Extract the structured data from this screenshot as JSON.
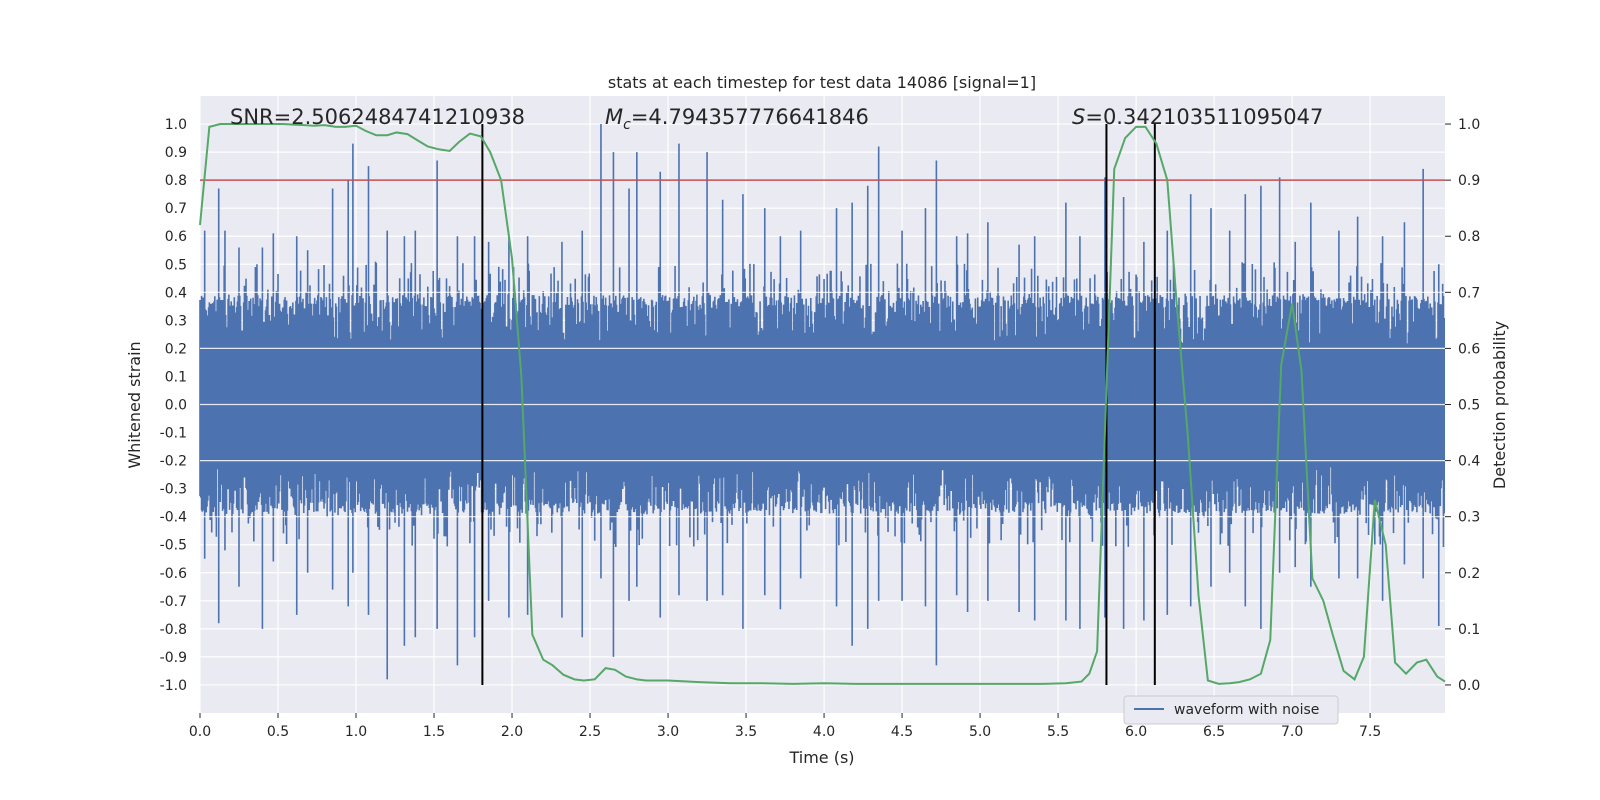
{
  "chart_data": {
    "type": "line",
    "title": "stats at each timestep for test data 14086 [signal=1]",
    "xlabel": "Time (s)",
    "ylabel_left": "Whitened strain",
    "ylabel_right": "Detection probability",
    "xlim": [
      0.0,
      7.98
    ],
    "ylim_left": [
      -1.1,
      1.1
    ],
    "ylim_right": [
      -0.05,
      1.05
    ],
    "x_ticks": [
      "0.0",
      "0.5",
      "1.0",
      "1.5",
      "2.0",
      "2.5",
      "3.0",
      "3.5",
      "4.0",
      "4.5",
      "5.0",
      "5.5",
      "6.0",
      "6.5",
      "7.0",
      "7.5"
    ],
    "x_tick_values": [
      0.0,
      0.5,
      1.0,
      1.5,
      2.0,
      2.5,
      3.0,
      3.5,
      4.0,
      4.5,
      5.0,
      5.5,
      6.0,
      6.5,
      7.0,
      7.5
    ],
    "y_left_ticks": [
      "1.0",
      "0.9",
      "0.8",
      "0.7",
      "0.6",
      "0.5",
      "0.4",
      "0.3",
      "0.2",
      "0.1",
      "0.0",
      "-0.1",
      "-0.2",
      "-0.3",
      "-0.4",
      "-0.5",
      "-0.6",
      "-0.7",
      "-0.8",
      "-0.9",
      "-1.0"
    ],
    "y_left_tick_values": [
      1.0,
      0.9,
      0.8,
      0.7,
      0.6,
      0.5,
      0.4,
      0.3,
      0.2,
      0.1,
      0.0,
      -0.1,
      -0.2,
      -0.3,
      -0.4,
      -0.5,
      -0.6,
      -0.7,
      -0.8,
      -0.9,
      -1.0
    ],
    "y_right_ticks": [
      "1.0",
      "0.9",
      "0.8",
      "0.7",
      "0.6",
      "0.5",
      "0.4",
      "0.3",
      "0.2",
      "0.1",
      "0.0"
    ],
    "y_right_tick_values": [
      1.0,
      0.9,
      0.8,
      0.7,
      0.6,
      0.5,
      0.4,
      0.3,
      0.2,
      0.1,
      0.0
    ],
    "annotations": {
      "snr": "SNR=2.5062484741210938",
      "mc_symbol": "M",
      "mc_sub": "c",
      "mc_value": "=4.794357776641846",
      "s_symbol": "S",
      "s_value": "=0.342103511095047"
    },
    "legend": {
      "label": "waveform with noise",
      "position": "lower-right"
    },
    "threshold": {
      "value": 0.9,
      "axis": "right",
      "color": "#c44e52"
    },
    "vertical_lines": [
      1.81,
      5.81,
      6.12
    ],
    "vertical_line_range_left": [
      -1.0,
      1.0
    ],
    "waveform": {
      "name": "waveform with noise",
      "color": "#4c72b0",
      "sample_rate": 200,
      "duration": 7.98,
      "core_amplitude": 0.21,
      "band_top": 0.39,
      "band_bottom": -0.39,
      "spikes": [
        [
          0.03,
          0.62,
          -0.55
        ],
        [
          0.12,
          0.77,
          -0.78
        ],
        [
          0.16,
          0.62,
          -0.52
        ],
        [
          0.25,
          0.56,
          -0.65
        ],
        [
          0.4,
          0.56,
          -0.8
        ],
        [
          0.47,
          0.61,
          -0.56
        ],
        [
          0.62,
          0.6,
          -0.75
        ],
        [
          0.69,
          0.55,
          -0.6
        ],
        [
          0.85,
          0.77,
          -0.66
        ],
        [
          0.95,
          0.8,
          -0.72
        ],
        [
          0.98,
          0.93,
          -0.6
        ],
        [
          1.08,
          0.85,
          -0.75
        ],
        [
          1.2,
          0.62,
          -0.98
        ],
        [
          1.31,
          0.6,
          -0.86
        ],
        [
          1.38,
          0.62,
          -0.83
        ],
        [
          1.52,
          0.87,
          -0.8
        ],
        [
          1.65,
          0.6,
          -0.93
        ],
        [
          1.76,
          0.6,
          -0.83
        ],
        [
          1.85,
          0.58,
          -0.7
        ],
        [
          1.98,
          0.6,
          -0.76
        ],
        [
          2.1,
          0.6,
          -0.75
        ],
        [
          2.32,
          0.58,
          -0.76
        ],
        [
          2.45,
          0.62,
          -0.83
        ],
        [
          2.57,
          1.0,
          -0.62
        ],
        [
          2.65,
          0.9,
          -0.9
        ],
        [
          2.75,
          0.77,
          -0.7
        ],
        [
          2.8,
          0.9,
          -0.65
        ],
        [
          2.95,
          0.83,
          -0.76
        ],
        [
          3.07,
          0.93,
          -0.68
        ],
        [
          3.25,
          0.9,
          -0.7
        ],
        [
          3.35,
          0.73,
          -0.68
        ],
        [
          3.48,
          0.75,
          -0.8
        ],
        [
          3.62,
          0.7,
          -0.68
        ],
        [
          3.72,
          0.6,
          -0.73
        ],
        [
          3.85,
          0.62,
          -0.62
        ],
        [
          4.08,
          0.7,
          -0.72
        ],
        [
          4.18,
          0.72,
          -0.86
        ],
        [
          4.28,
          0.78,
          -0.8
        ],
        [
          4.35,
          0.92,
          -0.7
        ],
        [
          4.5,
          0.62,
          -0.7
        ],
        [
          4.65,
          0.7,
          -0.72
        ],
        [
          4.72,
          0.87,
          -0.93
        ],
        [
          4.85,
          0.6,
          -0.68
        ],
        [
          4.92,
          0.61,
          -0.74
        ],
        [
          5.05,
          0.65,
          -0.7
        ],
        [
          5.25,
          0.57,
          -0.74
        ],
        [
          5.35,
          0.6,
          -0.77
        ],
        [
          5.55,
          0.72,
          -0.77
        ],
        [
          5.64,
          0.6,
          -0.8
        ],
        [
          5.8,
          0.81,
          -0.76
        ],
        [
          5.92,
          0.74,
          -0.8
        ],
        [
          6.05,
          0.58,
          -0.77
        ],
        [
          6.2,
          0.62,
          -0.75
        ],
        [
          6.35,
          0.75,
          -0.72
        ],
        [
          6.48,
          0.7,
          -0.65
        ],
        [
          6.6,
          0.62,
          -0.6
        ],
        [
          6.7,
          0.75,
          -0.72
        ],
        [
          6.8,
          0.78,
          -0.8
        ],
        [
          6.92,
          0.81,
          -0.6
        ],
        [
          7.02,
          0.58,
          -0.58
        ],
        [
          7.12,
          0.72,
          -0.65
        ],
        [
          7.3,
          0.62,
          -0.62
        ],
        [
          7.42,
          0.67,
          -0.62
        ],
        [
          7.58,
          0.6,
          -0.7
        ],
        [
          7.72,
          0.65,
          -0.57
        ],
        [
          7.84,
          0.84,
          -0.62
        ],
        [
          7.94,
          0.5,
          -0.79
        ]
      ]
    },
    "detection_probability": {
      "name": "detection probability",
      "color": "#55a868",
      "x": [
        0.0,
        0.06,
        0.13,
        0.2,
        0.27,
        0.33,
        0.4,
        0.47,
        0.53,
        0.6,
        0.67,
        0.73,
        0.8,
        0.87,
        0.93,
        1.0,
        1.06,
        1.13,
        1.2,
        1.26,
        1.33,
        1.4,
        1.46,
        1.53,
        1.6,
        1.66,
        1.73,
        1.8,
        1.86,
        1.93,
        2.0,
        2.06,
        2.13,
        2.2,
        2.26,
        2.33,
        2.4,
        2.46,
        2.53,
        2.6,
        2.66,
        2.73,
        2.8,
        2.86,
        2.93,
        3.0,
        3.2,
        3.4,
        3.6,
        3.8,
        4.0,
        4.2,
        4.4,
        4.6,
        4.8,
        5.0,
        5.2,
        5.4,
        5.55,
        5.65,
        5.7,
        5.75,
        5.8,
        5.86,
        5.93,
        6.0,
        6.06,
        6.13,
        6.2,
        6.26,
        6.33,
        6.4,
        6.46,
        6.53,
        6.6,
        6.66,
        6.73,
        6.8,
        6.86,
        6.93,
        7.0,
        7.06,
        7.13,
        7.2,
        7.26,
        7.33,
        7.4,
        7.46,
        7.53,
        7.6,
        7.66,
        7.73,
        7.8,
        7.86,
        7.93,
        7.98
      ],
      "y": [
        0.82,
        0.995,
        1.0,
        1.0,
        1.0,
        1.0,
        1.0,
        1.0,
        1.0,
        0.999,
        0.998,
        0.997,
        0.998,
        0.995,
        0.995,
        0.997,
        0.988,
        0.98,
        0.98,
        0.985,
        0.982,
        0.97,
        0.96,
        0.955,
        0.952,
        0.968,
        0.983,
        0.978,
        0.95,
        0.9,
        0.76,
        0.55,
        0.09,
        0.045,
        0.035,
        0.018,
        0.01,
        0.008,
        0.01,
        0.03,
        0.027,
        0.015,
        0.01,
        0.008,
        0.008,
        0.008,
        0.005,
        0.003,
        0.003,
        0.002,
        0.003,
        0.002,
        0.002,
        0.002,
        0.002,
        0.002,
        0.002,
        0.002,
        0.003,
        0.006,
        0.02,
        0.06,
        0.45,
        0.92,
        0.975,
        0.995,
        0.995,
        0.965,
        0.9,
        0.68,
        0.45,
        0.16,
        0.008,
        0.002,
        0.003,
        0.005,
        0.01,
        0.02,
        0.08,
        0.57,
        0.68,
        0.56,
        0.19,
        0.15,
        0.09,
        0.025,
        0.01,
        0.05,
        0.33,
        0.25,
        0.04,
        0.02,
        0.04,
        0.045,
        0.015,
        0.006
      ]
    }
  }
}
